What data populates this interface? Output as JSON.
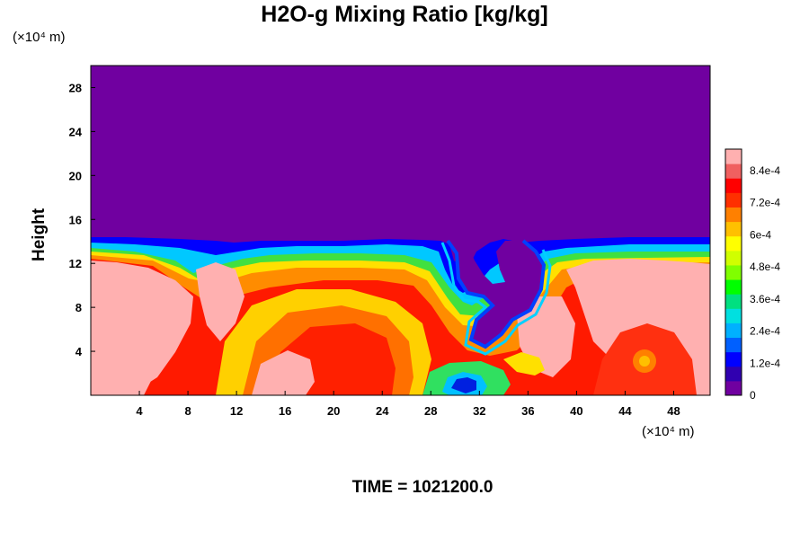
{
  "chart_data": {
    "type": "heatmap",
    "title": "H2O-g Mixing Ratio [kg/kg]",
    "ylabel": "Height",
    "x_unit": "(×10⁴ m)",
    "y_unit": "(×10⁴ m)",
    "footer": "TIME = 1021200.0",
    "xlim": [
      0,
      51
    ],
    "ylim": [
      0,
      30
    ],
    "x_ticks": [
      {
        "value": 4,
        "label": "4"
      },
      {
        "value": 8,
        "label": "8"
      },
      {
        "value": 12,
        "label": "12"
      },
      {
        "value": 16,
        "label": "16"
      },
      {
        "value": 20,
        "label": "20"
      },
      {
        "value": 24,
        "label": "24"
      },
      {
        "value": 28,
        "label": "28"
      },
      {
        "value": 32,
        "label": "32"
      },
      {
        "value": 36,
        "label": "36"
      },
      {
        "value": 40,
        "label": "40"
      },
      {
        "value": 44,
        "label": "44"
      },
      {
        "value": 48,
        "label": "48"
      }
    ],
    "y_ticks": [
      {
        "value": 4,
        "label": "4"
      },
      {
        "value": 8,
        "label": "8"
      },
      {
        "value": 12,
        "label": "12"
      },
      {
        "value": 16,
        "label": "16"
      },
      {
        "value": 20,
        "label": "20"
      },
      {
        "value": 24,
        "label": "24"
      },
      {
        "value": 28,
        "label": "28"
      }
    ],
    "colorbar": {
      "min": 0,
      "max": 0.00092,
      "ticks": [
        {
          "value": 0,
          "label": "0"
        },
        {
          "value": 0.00012,
          "label": "1.2e-4"
        },
        {
          "value": 0.00024,
          "label": "2.4e-4"
        },
        {
          "value": 0.00036,
          "label": "3.6e-4"
        },
        {
          "value": 0.00048,
          "label": "4.8e-4"
        },
        {
          "value": 0.0006,
          "label": "6e-4"
        },
        {
          "value": 0.00072,
          "label": "7.2e-4"
        },
        {
          "value": 0.00084,
          "label": "8.4e-4"
        }
      ],
      "colors": [
        "#7000a0",
        "#3000b0",
        "#0000ff",
        "#0060ff",
        "#00b0ff",
        "#00e0e0",
        "#00e080",
        "#00ff00",
        "#80ff00",
        "#d0ff00",
        "#ffff00",
        "#ffc000",
        "#ff8000",
        "#ff3000",
        "#ff0000",
        "#f06060",
        "#ffb0b0"
      ]
    },
    "background_color": "#7000a0"
  }
}
